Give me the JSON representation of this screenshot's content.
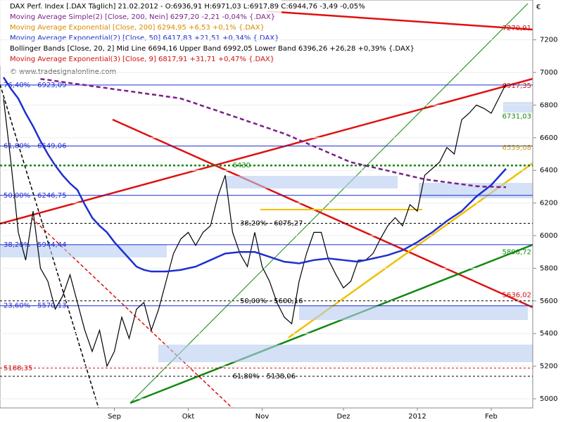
{
  "chart_data": {
    "type": "line",
    "header_lines": [
      {
        "text": "DAX Perf. Index [.DAX  Täglich]  21.02.2012 - O:6936,91 H:6971,03 L:6917,89 C:6944,76 -3,49 -0,05%",
        "color": "#000000"
      },
      {
        "text": "Moving Average Simple(2) [Close, 200, Nein] 6297,20 -2,21 -0,04% {.DAX}",
        "color": "#7a1f8a"
      },
      {
        "text": "Moving Average Exponential [Close, 200] 6294,95 +6,53 +0,1% {.DAX}",
        "color": "#d98a00"
      },
      {
        "text": "Moving Average Exponential(2) [Close, 50] 6417,83 +21,51 +0,34% {.DAX}",
        "color": "#1f2fd0"
      },
      {
        "text": "Bollinger Bands [Close, 20, 2] Mid Line 6694,16 Upper Band 6992,05 Lower Band 6396,26 +26,28 +0,39% {.DAX}",
        "color": "#000000"
      },
      {
        "text": "Moving Average Exponential(3) [Close, 9] 6817,91 +31,71 +0,47% {.DAX}",
        "color": "#d01010"
      }
    ],
    "watermark": "© www.tradesignalonline.com",
    "unit": "€",
    "categories": [
      null,
      null,
      null,
      null,
      null,
      null,
      null,
      null,
      null,
      null,
      null,
      null,
      null,
      null,
      null,
      "Sep",
      null,
      null,
      null,
      null,
      null,
      null,
      null,
      null,
      null,
      "Okt",
      null,
      null,
      null,
      null,
      null,
      null,
      null,
      null,
      null,
      "Nov",
      null,
      null,
      null,
      null,
      null,
      null,
      null,
      null,
      null,
      null,
      "Dez",
      null,
      null,
      null,
      null,
      null,
      null,
      null,
      null,
      null,
      "2012",
      null,
      null,
      null,
      null,
      null,
      null,
      null,
      null,
      null,
      "Feb",
      null,
      null
    ],
    "series": [
      {
        "color": "#000000",
        "dash": false,
        "width": 1.2,
        "values": [
          6840,
          6450,
          6020,
          5850,
          6150,
          5800,
          5720,
          5550,
          5630,
          5760,
          5590,
          5420,
          5290,
          5420,
          5200,
          5290,
          5500,
          5370,
          5550,
          5590,
          5420,
          5550,
          5720,
          5890,
          5980,
          6020,
          5940,
          6020,
          6060,
          6240,
          6370,
          6020,
          5890,
          5810,
          6020,
          5810,
          5720,
          5590,
          5500,
          5460,
          5720,
          5890,
          6020,
          6020,
          5850,
          5760,
          5680,
          5720,
          5850,
          5850,
          5890,
          5980,
          6060,
          6110,
          6060,
          6190,
          6150,
          6370,
          6410,
          6450,
          6540,
          6500,
          6710,
          6750,
          6800,
          6780,
          6750,
          6840,
          6930
        ]
      },
      {
        "color": "#1f2fd0",
        "dash": false,
        "width": 2.5,
        "values": [
          6970,
          6900,
          6840,
          6750,
          6670,
          6580,
          6500,
          6430,
          6370,
          6320,
          6280,
          6190,
          6110,
          6060,
          6020,
          5960,
          5910,
          5860,
          5810,
          5790,
          5780,
          5780,
          5780,
          5785,
          5790,
          5800,
          5810,
          5830,
          5850,
          5870,
          5890,
          5895,
          5900,
          5900,
          5900,
          5885,
          5870,
          5855,
          5840,
          5835,
          5830,
          5840,
          5850,
          5855,
          5860,
          5855,
          5850,
          5845,
          5840,
          5850,
          5860,
          5870,
          5880,
          5895,
          5910,
          5935,
          5960,
          5990,
          6020,
          6055,
          6090,
          6120,
          6150,
          6195,
          6240,
          6275,
          6310,
          6360,
          6410
        ]
      },
      {
        "color": "#7a1f8a",
        "dash": true,
        "width": 2.5,
        "values": [
          null,
          null,
          null,
          null,
          null,
          6960,
          6955,
          6948,
          6942,
          6935,
          6929,
          6923,
          6916,
          6910,
          6904,
          6897,
          6891,
          6885,
          6879,
          6872,
          6866,
          6860,
          6853,
          6847,
          6840,
          6825,
          6810,
          6794,
          6779,
          6764,
          6748,
          6733,
          6718,
          6702,
          6687,
          6671,
          6656,
          6640,
          6625,
          6606,
          6586,
          6567,
          6547,
          6528,
          6508,
          6489,
          6469,
          6450,
          6440,
          6429,
          6419,
          6408,
          6398,
          6387,
          6377,
          6366,
          6356,
          6345,
          6339,
          6333,
          6327,
          6321,
          6315,
          6309,
          6303,
          6300,
          6300,
          6298,
          6297
        ]
      }
    ],
    "levels": [
      {
        "text": "76,40% - 6923,09",
        "y": 6923.09,
        "x": 0,
        "color": "#1f2fd0"
      },
      {
        "text": "61,80% - 6549,06",
        "y": 6549.06,
        "x": 0,
        "color": "#1f2fd0"
      },
      {
        "text": "50,00% - 6246,75",
        "y": 6246.75,
        "x": 0,
        "color": "#1f2fd0"
      },
      {
        "text": "38,20% - 5944,44",
        "y": 5944.44,
        "x": 0,
        "color": "#1f2fd0"
      },
      {
        "text": "23,60% - 5570,13",
        "y": 5570.13,
        "x": 0,
        "color": "#1f2fd0"
      },
      {
        "text": "6430",
        "y": 6430,
        "x": 31,
        "color": "#118811"
      },
      {
        "text": "38,20% - 6075,27",
        "y": 6075.27,
        "x": 32,
        "color": "#000000"
      },
      {
        "text": "50,00% - 5600,16",
        "y": 5600.16,
        "x": 32,
        "color": "#000000"
      },
      {
        "text": "61,80% - 5138,06",
        "y": 5138.06,
        "x": 31,
        "color": "#000000"
      },
      {
        "text": "5188,35",
        "y": 5188.35,
        "x": 0,
        "color": "#d01010"
      }
    ],
    "labels": [
      {
        "text": "7270,91",
        "y": 7270.91,
        "color": "#d01010"
      },
      {
        "text": "6917,35",
        "y": 6917.35,
        "color": "#d01010"
      },
      {
        "text": "6731,03",
        "y": 6731.03,
        "color": "#118811"
      },
      {
        "text": "6539,08",
        "y": 6539.08,
        "color": "#c8a000"
      },
      {
        "text": "5898,72",
        "y": 5898.72,
        "color": "#118811"
      },
      {
        "text": "5636,02",
        "y": 5636.02,
        "color": "#d01010"
      }
    ],
    "ylim": [
      4944,
      7444
    ],
    "yticks": [
      5000,
      5200,
      5400,
      5600,
      5800,
      6000,
      6200,
      6400,
      6600,
      6800,
      7000,
      7200
    ]
  }
}
